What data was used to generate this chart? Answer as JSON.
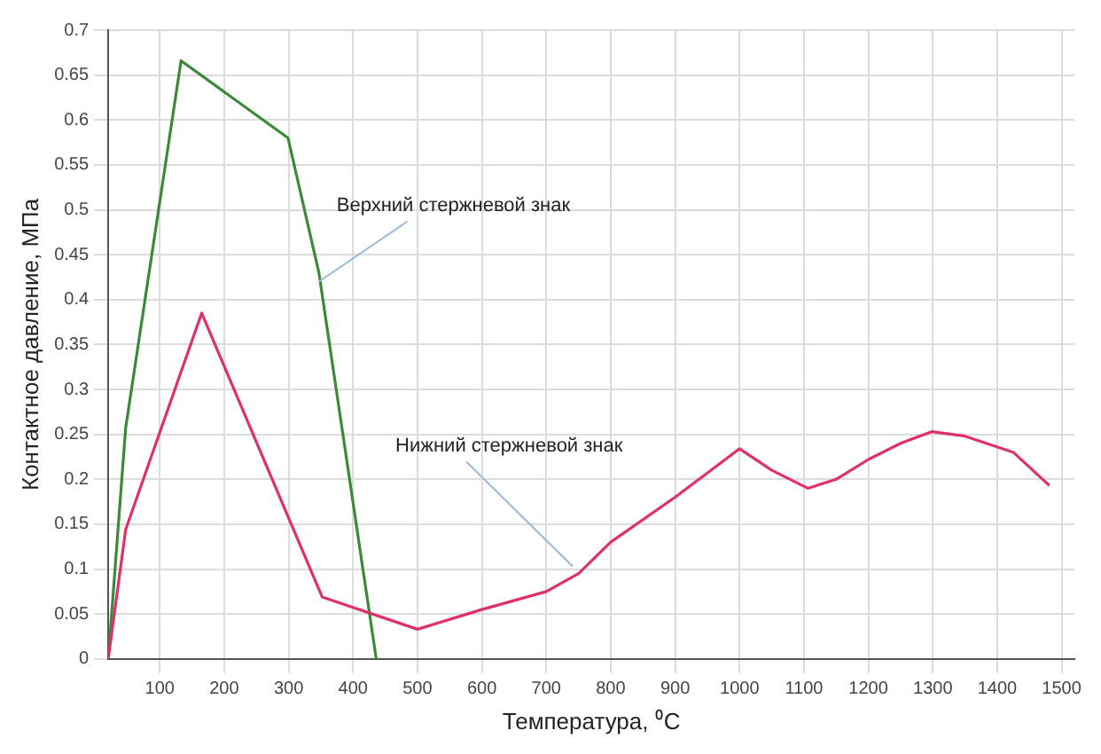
{
  "chart_data": {
    "type": "line",
    "xlabel": "Температура, ⁰С",
    "ylabel": "Контактное давление, МПа",
    "xlim": [
      20,
      1520
    ],
    "xticks": [
      100,
      200,
      300,
      400,
      500,
      600,
      700,
      800,
      900,
      1000,
      1100,
      1200,
      1300,
      1400,
      1500
    ],
    "ylim": [
      0,
      0.7
    ],
    "yticks": [
      0,
      0.05,
      0.1,
      0.15,
      0.2,
      0.25,
      0.3,
      0.35,
      0.4,
      0.45,
      0.5,
      0.55,
      0.6,
      0.65,
      0.7
    ],
    "grid": true,
    "legend": false,
    "marker": "none",
    "line_style": "solid",
    "series": [
      {
        "color": "#e0306a",
        "x": [
          20,
          47,
          165,
          352,
          500,
          600,
          700,
          750,
          800,
          900,
          1000,
          1050,
          1106,
          1150,
          1200,
          1250,
          1299,
          1350,
          1425,
          1481
        ],
        "values": [
          0,
          0.144,
          0.385,
          0.069,
          0.033,
          0.055,
          0.075,
          0.095,
          0.13,
          0.18,
          0.234,
          0.21,
          0.19,
          0.2,
          0.222,
          0.24,
          0.253,
          0.248,
          0.23,
          0.193
        ]
      },
      {
        "color": "#3a8a3a",
        "x": [
          20,
          47,
          133,
          299,
          347,
          436
        ],
        "values": [
          0,
          0.257,
          0.666,
          0.58,
          0.43,
          0
        ]
      }
    ],
    "annotations": [
      {
        "text": "Верхний стержневой знак",
        "x": 347,
        "y": 0.42
      },
      {
        "text": "Нижний стержневой знак",
        "x": 741,
        "y": 0.103
      }
    ]
  }
}
